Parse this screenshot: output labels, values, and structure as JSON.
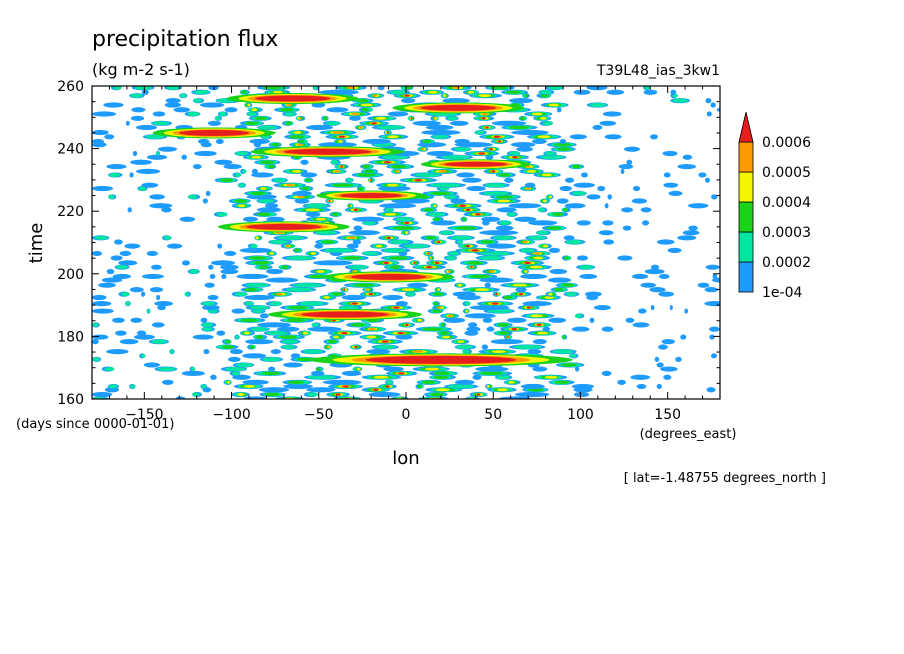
{
  "chart_data": {
    "type": "heatmap",
    "title": "precipitation flux",
    "units": "(kg m-2 s-1)",
    "run_label": "T39L48_ias_3kw1",
    "xlabel": "lon",
    "xunits": "(degrees_east)",
    "ylabel": "time",
    "yunits": "(days since 0000-01-01)",
    "footnote": "[ lat=-1.48755 degrees_north ]",
    "xlim": [
      -180,
      180
    ],
    "ylim": [
      160,
      260
    ],
    "x_ticks": [
      -150,
      -100,
      -50,
      0,
      50,
      100,
      150
    ],
    "y_ticks": [
      160,
      180,
      200,
      220,
      240,
      260
    ],
    "colorbar": {
      "levels": [
        0.0001,
        0.0002,
        0.0003,
        0.0004,
        0.0005,
        0.0006
      ],
      "level_labels": [
        "1e-04",
        "0.0002",
        "0.0003",
        "0.0004",
        "0.0005",
        "0.0006"
      ],
      "colors": [
        "#1e9bff",
        "#00e5a0",
        "#19d219",
        "#f5f500",
        "#ff9a00",
        "#e61e1e"
      ]
    },
    "note": "Hovmoller contour of equatorial precipitation flux; most intense values between lon -100 and 90, sparse light values east of 100"
  }
}
